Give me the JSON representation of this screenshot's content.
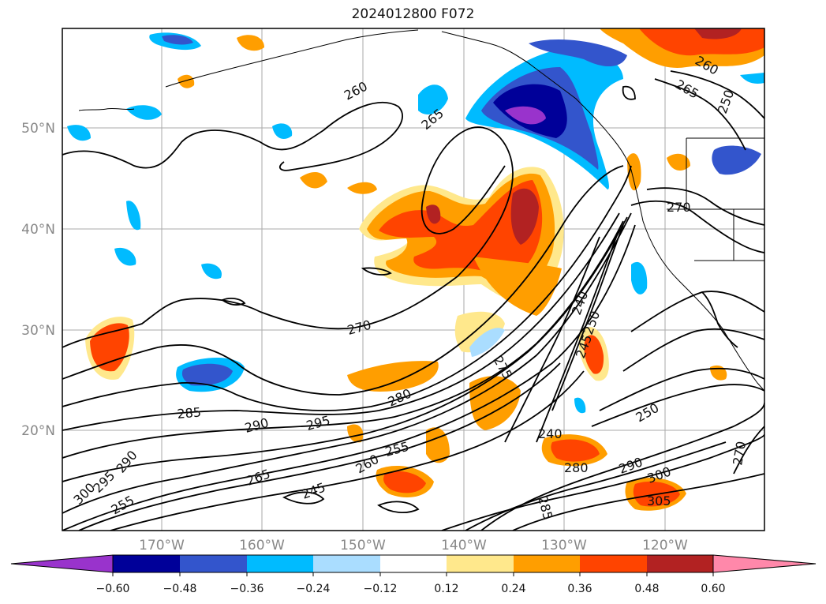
{
  "title": "2024012800 F072",
  "map": {
    "lat_labels": [
      "50°N",
      "40°N",
      "30°N",
      "20°N"
    ],
    "lon_labels": [
      "170°W",
      "160°W",
      "150°W",
      "140°W",
      "130°W",
      "120°W"
    ],
    "contour_labels": [
      "260",
      "265",
      "270",
      "285",
      "290",
      "295",
      "280",
      "275",
      "240",
      "245",
      "250",
      "255",
      "260",
      "265",
      "270",
      "290",
      "295",
      "300",
      "305",
      "255",
      "250",
      "245",
      "240",
      "290",
      "300",
      "260",
      "265",
      "280",
      "250",
      "270",
      "285"
    ],
    "fill_colors": {
      "strong_neg": "#9933cc",
      "neg_48": "#000099",
      "neg_36": "#3355cc",
      "neg_24": "#00bbff",
      "neg_12": "#aaddff",
      "pos_12": "#ffe88c",
      "pos_24": "#ff9e00",
      "pos_36": "#ff4400",
      "pos_48": "#b22222",
      "strong_pos": "#ff88aa"
    }
  },
  "colorbar": {
    "ticks": [
      "−0.60",
      "−0.48",
      "−0.36",
      "−0.24",
      "−0.12",
      "0.12",
      "0.24",
      "0.36",
      "0.48",
      "0.60"
    ],
    "colors": [
      "#9933cc",
      "#000099",
      "#3355cc",
      "#00bbff",
      "#aaddff",
      "#ffffff",
      "#ffe88c",
      "#ff9e00",
      "#ff4400",
      "#b22222",
      "#ff88aa"
    ]
  }
}
